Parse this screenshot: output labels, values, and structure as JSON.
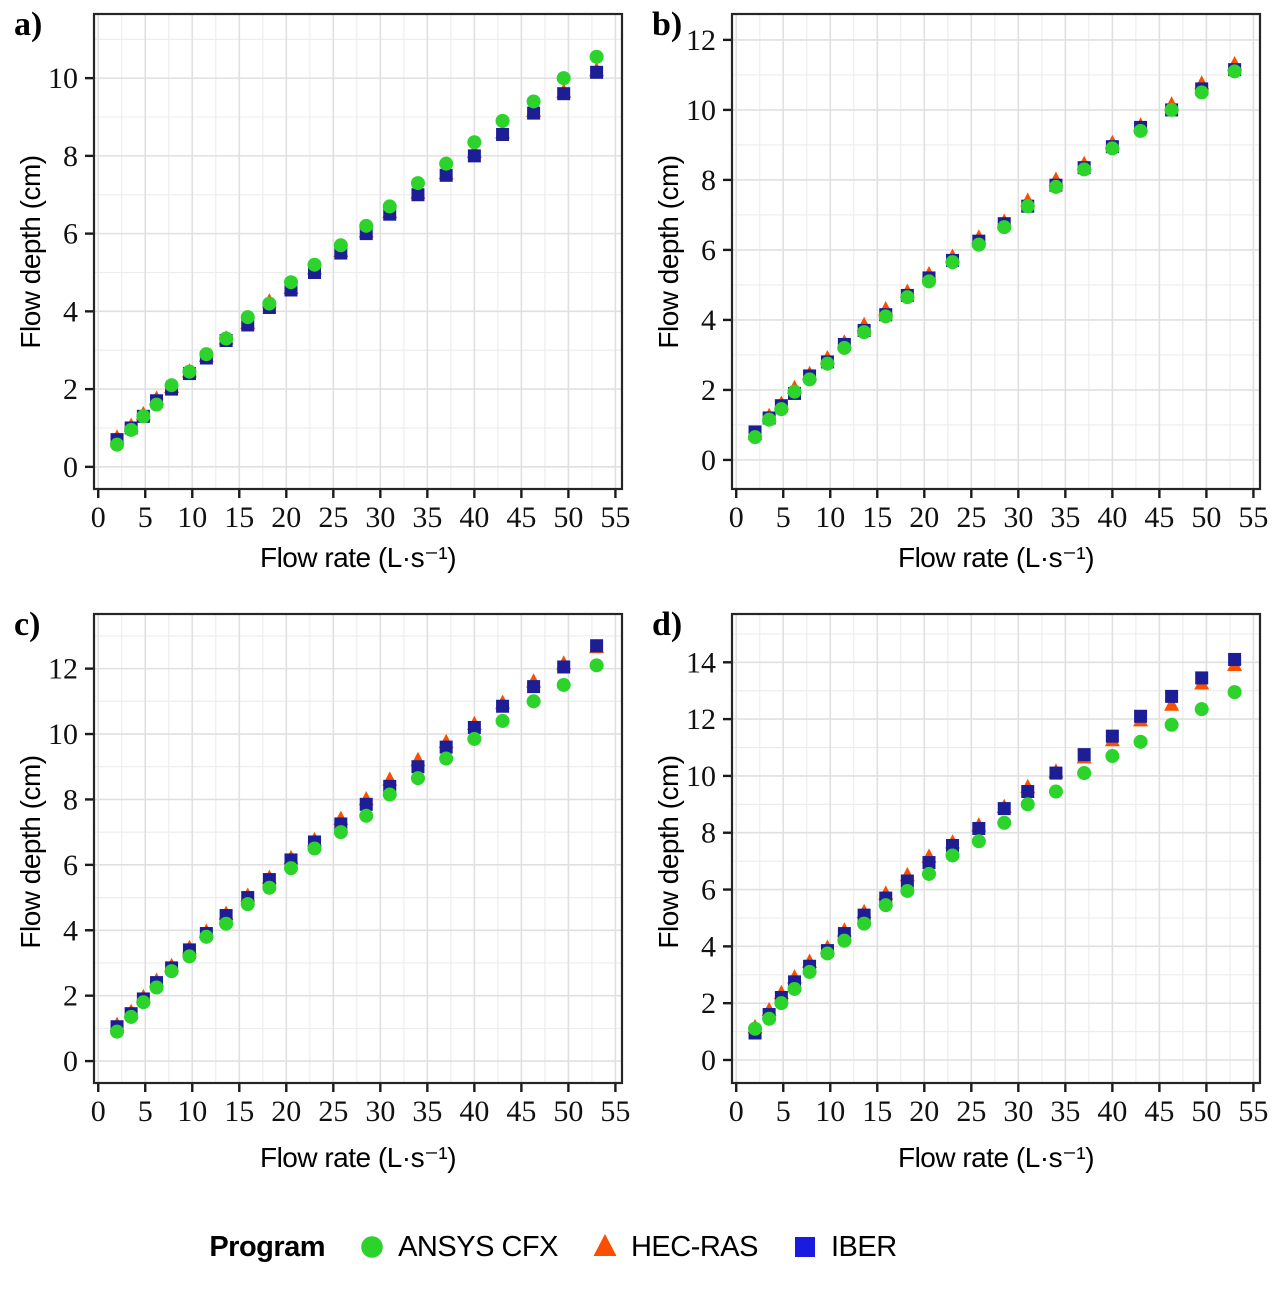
{
  "axes": {
    "xlabel": "Flow rate (L·s⁻¹)",
    "ylabel": "Flow depth (cm)",
    "xticks": [
      0,
      5,
      10,
      15,
      20,
      25,
      30,
      35,
      40,
      45,
      50,
      55
    ],
    "xlim": [
      -0.45,
      55.7
    ],
    "x_minor_step": 2.5,
    "y_minor_step": 1
  },
  "style": {
    "background": "#ffffff",
    "frame_color": "#262626",
    "grid_major_color": "#e0e0e0",
    "grid_minor_color": "#ececec",
    "tick_color": "#1a1a1a",
    "tick_label_color": "#111111"
  },
  "legend": {
    "title": "Program",
    "items": [
      {
        "label": "ANSYS CFX",
        "marker": "circle",
        "color": "#2bd32b"
      },
      {
        "label": "HEC-RAS",
        "marker": "triangle",
        "color": "#fa4e00"
      },
      {
        "label": "IBER",
        "marker": "square",
        "color": "#1b1be0"
      }
    ]
  },
  "chart_data": [
    {
      "id": "a",
      "label": "a)",
      "type": "scatter",
      "ylim": [
        -0.57,
        11.65
      ],
      "yticks": [
        0,
        2,
        4,
        6,
        8,
        10
      ],
      "x": [
        2,
        3.5,
        4.8,
        6.2,
        7.8,
        9.7,
        11.5,
        13.6,
        15.9,
        18.2,
        20.5,
        23,
        25.8,
        28.5,
        31,
        34,
        37,
        40,
        43,
        46.3,
        49.5,
        53
      ],
      "series": [
        {
          "name": "ANSYS CFX",
          "marker": "circle",
          "color": "#2bd32b",
          "z": 3,
          "values": [
            0.57,
            0.95,
            1.3,
            1.6,
            2.1,
            2.45,
            2.9,
            3.3,
            3.85,
            4.2,
            4.75,
            5.2,
            5.7,
            6.2,
            6.7,
            7.3,
            7.8,
            8.35,
            8.9,
            9.4,
            10.0,
            10.55
          ]
        },
        {
          "name": "HEC-RAS",
          "marker": "triangle",
          "color": "#fa4e00",
          "z": 1,
          "values": [
            0.75,
            1.05,
            1.35,
            1.75,
            2.05,
            2.45,
            2.85,
            3.3,
            3.7,
            4.25,
            4.6,
            5.1,
            5.55,
            6.05,
            6.55,
            7.05,
            7.55,
            8.1,
            8.6,
            9.15,
            9.65,
            10.2
          ]
        },
        {
          "name": "IBER",
          "marker": "square",
          "color": "#1d1d96",
          "z": 2,
          "values": [
            0.7,
            1.0,
            1.3,
            1.7,
            2.0,
            2.4,
            2.8,
            3.25,
            3.65,
            4.1,
            4.55,
            5.0,
            5.5,
            6.0,
            6.5,
            7.0,
            7.5,
            8.0,
            8.55,
            9.1,
            9.6,
            10.15
          ]
        }
      ]
    },
    {
      "id": "b",
      "label": "b)",
      "type": "scatter",
      "ylim": [
        -0.83,
        12.74
      ],
      "yticks": [
        0,
        2,
        4,
        6,
        8,
        10,
        12
      ],
      "x": [
        2,
        3.5,
        4.8,
        6.2,
        7.8,
        9.7,
        11.5,
        13.6,
        15.9,
        18.2,
        20.5,
        23,
        25.8,
        28.5,
        31,
        34,
        37,
        40,
        43,
        46.3,
        49.5,
        53
      ],
      "series": [
        {
          "name": "ANSYS CFX",
          "marker": "circle",
          "color": "#2bd32b",
          "z": 3,
          "values": [
            0.65,
            1.15,
            1.45,
            1.95,
            2.3,
            2.75,
            3.2,
            3.65,
            4.1,
            4.65,
            5.1,
            5.65,
            6.15,
            6.65,
            7.25,
            7.8,
            8.3,
            8.9,
            9.4,
            10.0,
            10.5,
            11.1
          ]
        },
        {
          "name": "HEC-RAS",
          "marker": "triangle",
          "color": "#fa4e00",
          "z": 1,
          "values": [
            0.75,
            1.25,
            1.6,
            2.05,
            2.45,
            2.9,
            3.35,
            3.85,
            4.3,
            4.8,
            5.3,
            5.8,
            6.35,
            6.8,
            7.4,
            8.0,
            8.45,
            9.05,
            9.55,
            10.15,
            10.75,
            11.3
          ]
        },
        {
          "name": "IBER",
          "marker": "square",
          "color": "#1d1d96",
          "z": 2,
          "values": [
            0.8,
            1.2,
            1.55,
            1.9,
            2.4,
            2.8,
            3.3,
            3.7,
            4.15,
            4.7,
            5.2,
            5.7,
            6.25,
            6.75,
            7.25,
            7.85,
            8.35,
            8.95,
            9.5,
            10.0,
            10.6,
            11.15
          ]
        }
      ]
    },
    {
      "id": "c",
      "label": "c)",
      "type": "scatter",
      "ylim": [
        -0.67,
        13.67
      ],
      "yticks": [
        0,
        2,
        4,
        6,
        8,
        10,
        12
      ],
      "x": [
        2,
        3.5,
        4.8,
        6.2,
        7.8,
        9.7,
        11.5,
        13.6,
        15.9,
        18.2,
        20.5,
        23,
        25.8,
        28.5,
        31,
        34,
        37,
        40,
        43,
        46.3,
        49.5,
        53
      ],
      "series": [
        {
          "name": "ANSYS CFX",
          "marker": "circle",
          "color": "#2bd32b",
          "z": 3,
          "values": [
            0.9,
            1.35,
            1.8,
            2.25,
            2.75,
            3.2,
            3.8,
            4.2,
            4.8,
            5.3,
            5.9,
            6.5,
            7.0,
            7.5,
            8.15,
            8.65,
            9.25,
            9.85,
            10.4,
            11.0,
            11.5,
            12.1
          ]
        },
        {
          "name": "HEC-RAS",
          "marker": "triangle",
          "color": "#fa4e00",
          "z": 1,
          "values": [
            1.1,
            1.5,
            1.95,
            2.45,
            2.9,
            3.45,
            3.95,
            4.5,
            5.05,
            5.6,
            6.2,
            6.75,
            7.4,
            8.0,
            8.6,
            9.2,
            9.75,
            10.3,
            10.95,
            11.6,
            12.15,
            12.65
          ]
        },
        {
          "name": "IBER",
          "marker": "square",
          "color": "#1d1d96",
          "z": 2,
          "values": [
            1.05,
            1.45,
            1.9,
            2.4,
            2.85,
            3.4,
            3.9,
            4.45,
            5.0,
            5.55,
            6.15,
            6.7,
            7.25,
            7.85,
            8.4,
            9.0,
            9.6,
            10.2,
            10.85,
            11.45,
            12.05,
            12.7
          ]
        }
      ]
    },
    {
      "id": "d",
      "label": "d)",
      "type": "scatter",
      "ylim": [
        -0.81,
        15.7
      ],
      "yticks": [
        0,
        2,
        4,
        6,
        8,
        10,
        12,
        14
      ],
      "x": [
        2,
        3.5,
        4.8,
        6.2,
        7.8,
        9.7,
        11.5,
        13.6,
        15.9,
        18.2,
        20.5,
        23,
        25.8,
        28.5,
        31,
        34,
        37,
        40,
        43,
        46.3,
        49.5,
        53
      ],
      "series": [
        {
          "name": "ANSYS CFX",
          "marker": "circle",
          "color": "#2bd32b",
          "z": 3,
          "values": [
            1.1,
            1.45,
            2.0,
            2.5,
            3.1,
            3.75,
            4.2,
            4.8,
            5.45,
            5.95,
            6.55,
            7.2,
            7.7,
            8.35,
            9.0,
            9.45,
            10.1,
            10.7,
            11.2,
            11.8,
            12.35,
            12.95
          ]
        },
        {
          "name": "HEC-RAS",
          "marker": "triangle",
          "color": "#fa4e00",
          "z": 1,
          "values": [
            1.15,
            1.75,
            2.35,
            2.9,
            3.45,
            3.95,
            4.55,
            5.2,
            5.85,
            6.5,
            7.15,
            7.65,
            8.25,
            8.9,
            9.6,
            10.15,
            10.65,
            11.25,
            11.95,
            12.5,
            13.25,
            13.9
          ]
        },
        {
          "name": "IBER",
          "marker": "square",
          "color": "#1d1d96",
          "z": 2,
          "values": [
            0.95,
            1.6,
            2.2,
            2.75,
            3.3,
            3.85,
            4.45,
            5.1,
            5.7,
            6.3,
            6.95,
            7.55,
            8.15,
            8.85,
            9.45,
            10.1,
            10.75,
            11.4,
            12.1,
            12.8,
            13.45,
            14.1
          ]
        }
      ]
    }
  ]
}
